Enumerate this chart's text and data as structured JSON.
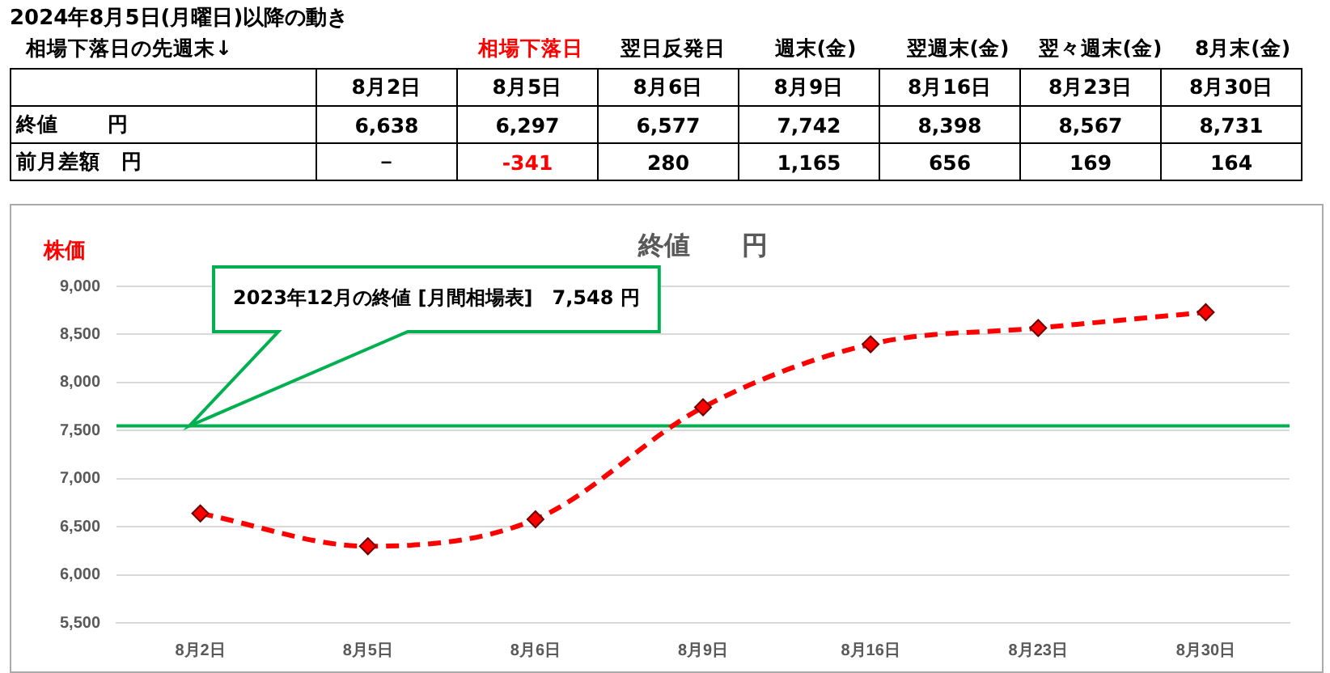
{
  "chart_data": {
    "type": "line",
    "title": "2024年8月5日(月曜日)以降の動き",
    "subtitle": "終値　　円",
    "ylabel": "株価",
    "categories": [
      "8月2日",
      "8月5日",
      "8月6日",
      "8月9日",
      "8月16日",
      "8月23日",
      "8月30日"
    ],
    "series": [
      {
        "color": "#ff0000",
        "values": [
          6638,
          6297,
          6577,
          7742,
          8398,
          8567,
          8731
        ]
      }
    ],
    "ylim": [
      5500,
      9000
    ],
    "yticks": [
      {
        "value": 5500,
        "label": "5,500"
      },
      {
        "value": 6000,
        "label": "6,000"
      },
      {
        "value": 6500,
        "label": "6,500"
      },
      {
        "value": 7000,
        "label": "7,000"
      },
      {
        "value": 7500,
        "label": "7,500"
      },
      {
        "value": 8000,
        "label": "8,000"
      },
      {
        "value": 8500,
        "label": "8,500"
      },
      {
        "value": 9000,
        "label": "9,000"
      }
    ],
    "grid": "y",
    "legend": false,
    "marker": "diamond",
    "line_style": "dashed",
    "ref_lines": [
      {
        "axis": "y",
        "value": 7548,
        "color": "#00b050"
      }
    ],
    "annotations": [
      "2023年12月の終値 [月間相場表]　7,548 円",
      "相場下落日の先週末↓",
      "相場下落日",
      "翌日反発日",
      "週末(金)",
      "翌週末(金)",
      "翌々週末(金)",
      "8月末(金)",
      "終値　　 円",
      "6,638",
      "6,297",
      "6,577",
      "7,742",
      "8,398",
      "8,567",
      "8,731",
      "前月差額　円",
      "－",
      "-341",
      "280",
      "1,165",
      "656",
      "169",
      "164"
    ]
  }
}
